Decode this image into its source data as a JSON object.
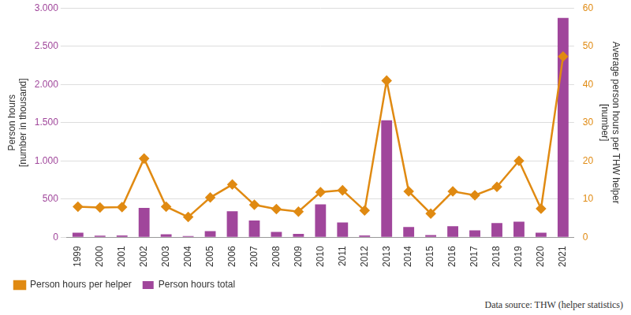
{
  "chart_data": {
    "type": "bar",
    "y_label": [
      "Person hours",
      "[number in thousand]"
    ],
    "y2_label": [
      "Average person hours per THW helper",
      "[number]"
    ],
    "source": "Data source: THW (helper statistics)",
    "categories": [
      "1999",
      "2000",
      "2001",
      "2002",
      "2003",
      "2004",
      "2005",
      "2006",
      "2007",
      "2008",
      "2009",
      "2010",
      "2011",
      "2012",
      "2013",
      "2014",
      "2015",
      "2016",
      "2017",
      "2018",
      "2019",
      "2020",
      "2021"
    ],
    "series": [
      {
        "name": "Person hours total",
        "type": "bar",
        "color": "#a0469b",
        "axis": "y",
        "values": [
          60,
          20,
          25,
          385,
          40,
          15,
          80,
          340,
          220,
          70,
          45,
          430,
          195,
          25,
          1530,
          135,
          30,
          145,
          90,
          185,
          205,
          60,
          2870
        ]
      },
      {
        "name": "Person hours per helper",
        "type": "line",
        "color": "#e08a12",
        "axis": "y2",
        "marker": "diamond",
        "values": [
          8,
          7.8,
          7.9,
          20.6,
          8,
          5.3,
          10.4,
          13.8,
          8.5,
          7.4,
          6.7,
          11.8,
          12.3,
          7,
          41,
          12,
          6.2,
          12,
          11,
          13.2,
          20,
          7.5,
          47.3
        ]
      }
    ],
    "ylim": [
      0,
      3000
    ],
    "yticks": [
      0,
      500,
      {
        "value": 1000,
        "label": "1.000"
      },
      {
        "value": 1500,
        "label": "1.500"
      },
      {
        "value": 2000,
        "label": "2.000"
      },
      {
        "value": 2500,
        "label": "2.500"
      },
      {
        "value": 3000,
        "label": "3.000"
      }
    ],
    "y2lim": [
      0,
      60
    ],
    "y2ticks": [
      0,
      10,
      20,
      30,
      40,
      50,
      60
    ],
    "grid": true,
    "legend": "bottom-left"
  }
}
